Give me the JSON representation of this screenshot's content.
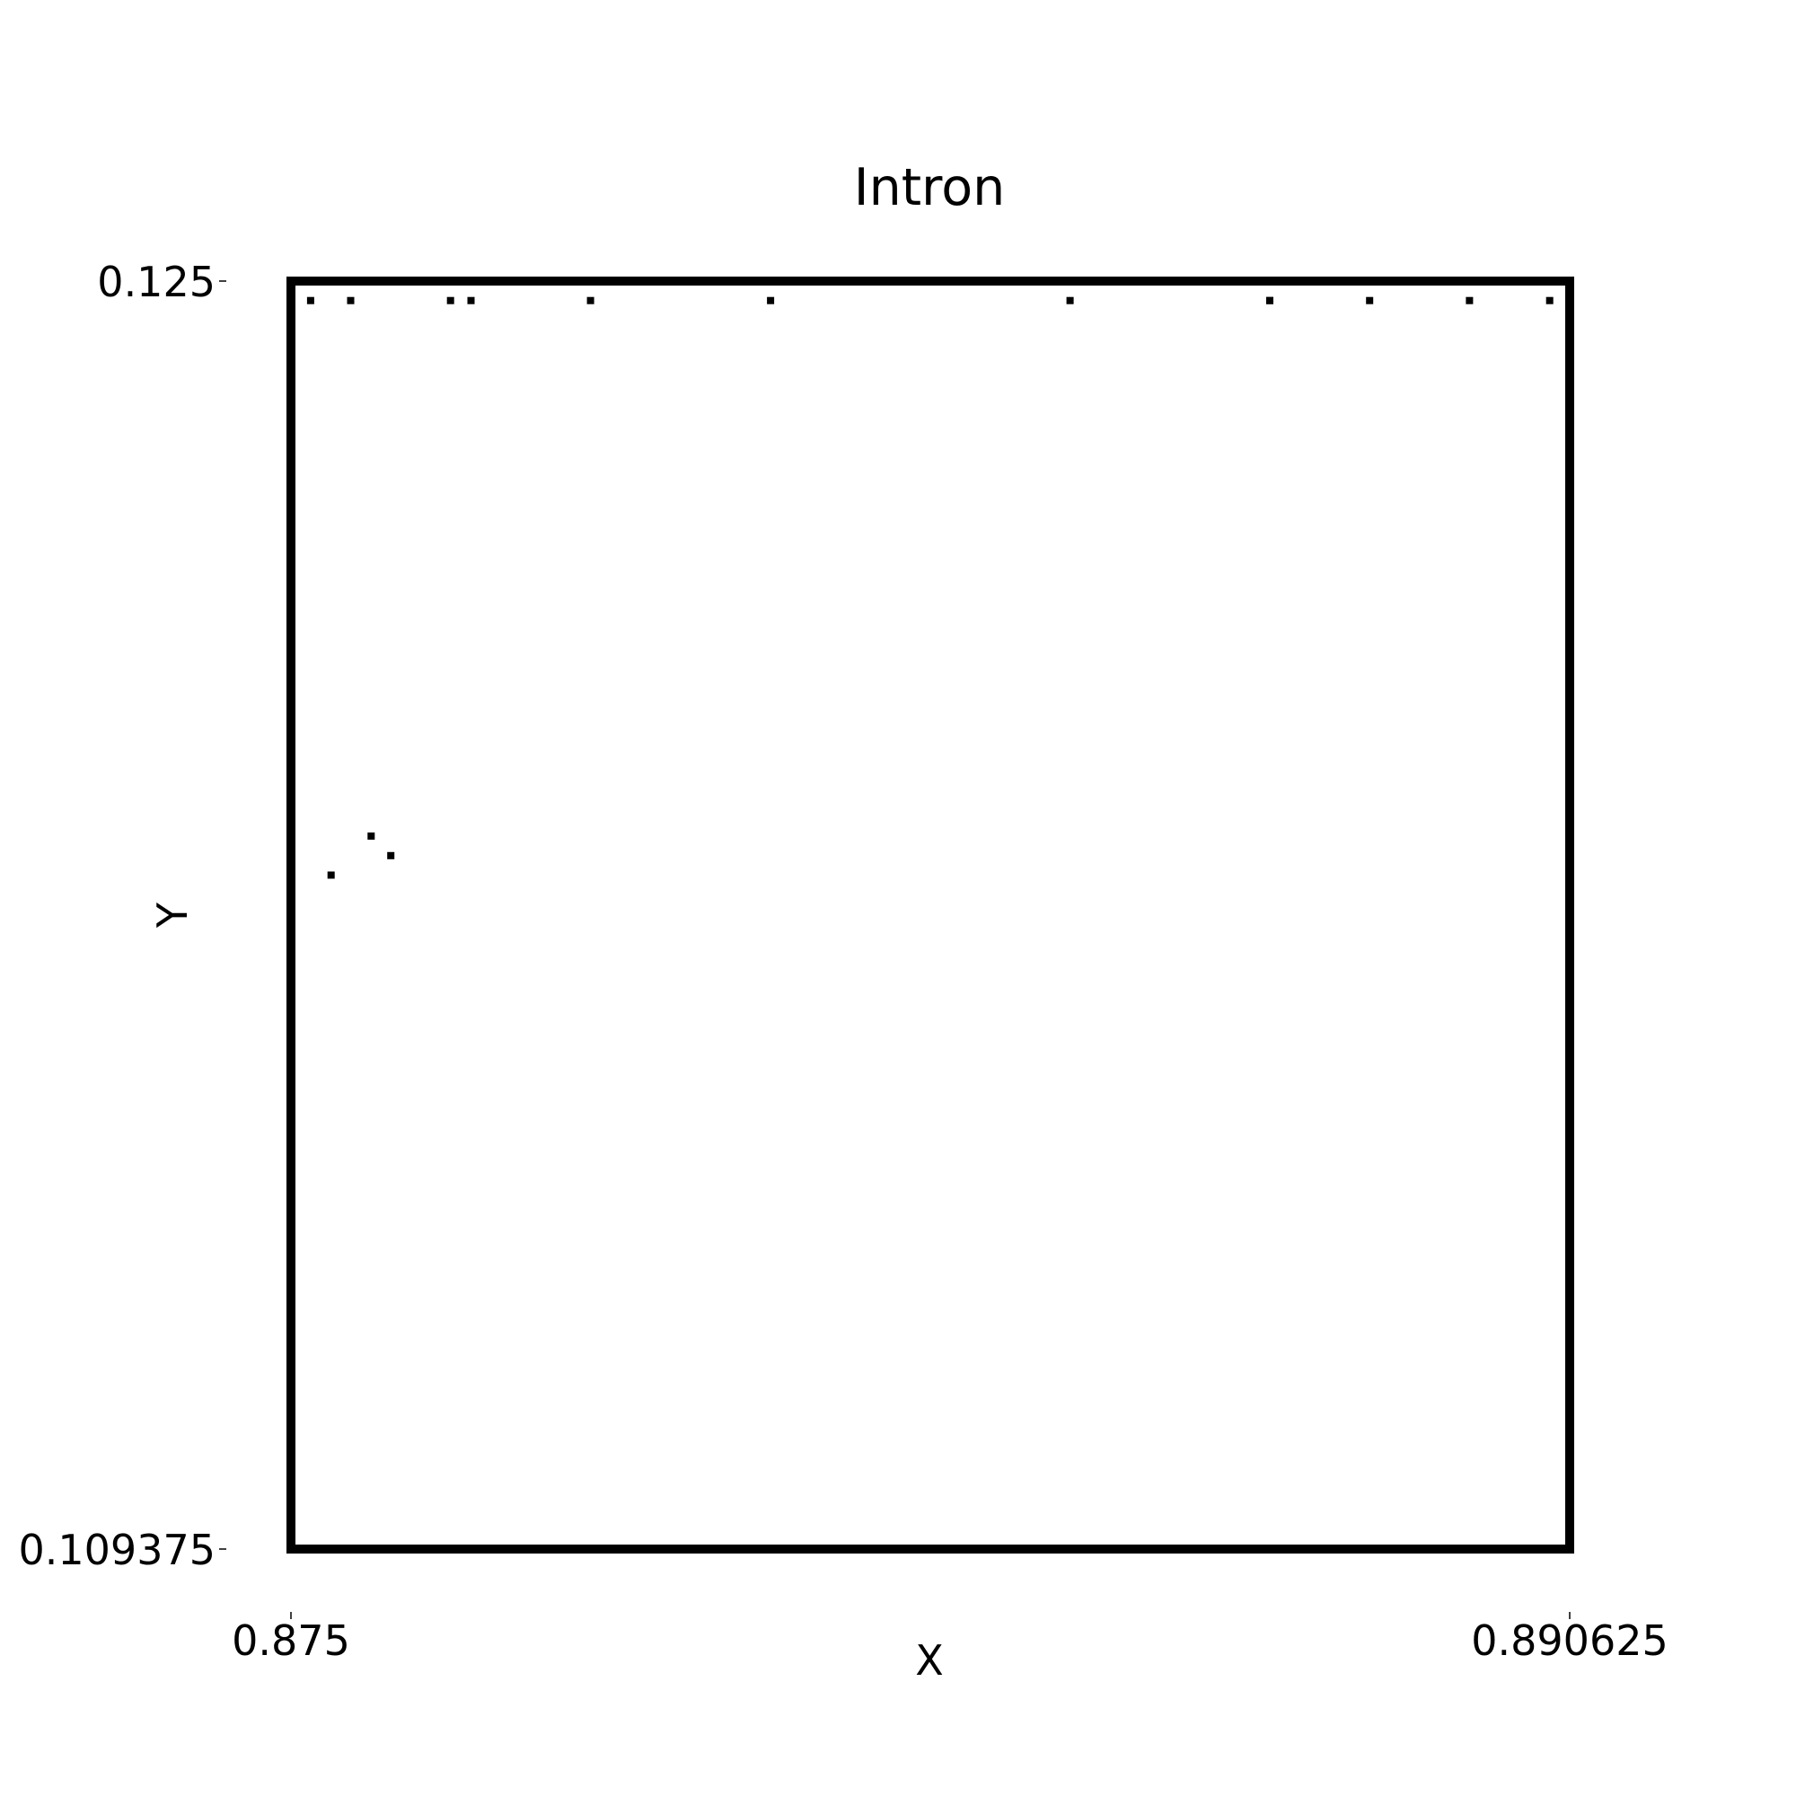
{
  "chart_data": {
    "type": "scatter",
    "title": "Intron",
    "xlabel": "X",
    "ylabel": "Y",
    "xlim": [
      0.875,
      0.890625
    ],
    "ylim": [
      0.109375,
      0.125
    ],
    "xticks": [
      "0.875",
      "0.890625"
    ],
    "yticks": [
      "0.125",
      "0.109375"
    ],
    "grid": false,
    "marker_color": "#000000",
    "points": [
      [
        0.87524,
        0.12476
      ],
      [
        0.87573,
        0.12476
      ],
      [
        0.87695,
        0.12476
      ],
      [
        0.8772,
        0.12476
      ],
      [
        0.87866,
        0.12476
      ],
      [
        0.88086,
        0.12476
      ],
      [
        0.88452,
        0.12476
      ],
      [
        0.88696,
        0.12476
      ],
      [
        0.88818,
        0.12476
      ],
      [
        0.8894,
        0.12476
      ],
      [
        0.89038,
        0.12476
      ],
      [
        0.88696,
        0.12476
      ],
      [
        0.87549,
        0.11768
      ],
      [
        0.87598,
        0.11816
      ],
      [
        0.87622,
        0.11792
      ]
    ]
  }
}
